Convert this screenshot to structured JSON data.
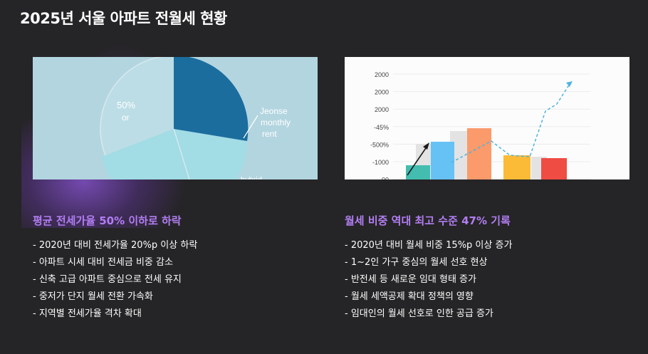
{
  "title": "2025년 서울 아파트 전월세 현황",
  "left": {
    "image": {
      "label_pct": "50%",
      "label_or": "or",
      "label_jeonse_line1": "Jeonse",
      "label_jeonse_line2": "monthly",
      "label_jeonse_line3": "rent",
      "label_hybrid": "hybrid",
      "colors": {
        "background": "#b3d5e0",
        "dark_slice": "#1b6d9e",
        "light_slice": "#a2dce5",
        "outline": "#d6e9ef"
      }
    },
    "heading": "평균 전세가율 50% 이하로 하락",
    "bullets": [
      "- 2020년 대비 전세가율 20%p 이상 하락",
      "- 아파트 시세 대비 전세금 비중 감소",
      "- 신축 고급 아파트 중심으로 전세 유지",
      "- 중저가 단지 월세 전환 가속화",
      "- 지역별 전세가율 격차 확대"
    ]
  },
  "right": {
    "image": {
      "y_tick_labels": [
        "2000",
        "2000",
        "2000",
        "-45%",
        "-500%",
        "-1000",
        "-00"
      ],
      "bars": [
        {
          "color": "#43bdb0"
        },
        {
          "color": "#66c1f5"
        },
        {
          "color": "#fb9a6b"
        },
        {
          "color": "#fbbb37"
        },
        {
          "color": "#ef4c43"
        }
      ],
      "colors": {
        "dashed_trend": "#4fb3e0",
        "arrow": "#1a1a1a",
        "shadow_bar": "#e3e3e3"
      }
    },
    "heading": "월세 비중 역대 최고 수준 47% 기록",
    "bullets": [
      "- 2020년 대비 월세 비중 15%p 이상 증가",
      "- 1~2인 가구 중심의 월세 선호 현상",
      "- 반전세 등 새로운 임대 형태 증가",
      "- 월세 세액공제 확대 정책의 영향",
      "- 임대인의 월세 선호로 인한 공급 증가"
    ]
  },
  "accent_color": "#b27ef2"
}
